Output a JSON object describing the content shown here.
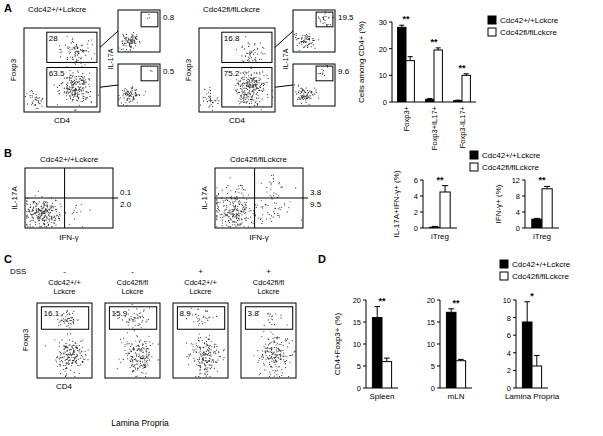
{
  "panel_labels": [
    "A",
    "B",
    "C",
    "D"
  ],
  "flow_a": [
    {
      "title": "Cdc42+/+Lckcre",
      "x_label": "CD4",
      "y_label": "Foxp3",
      "gates": [
        "28",
        "63.5"
      ],
      "sub_y_label": "IL-17A",
      "sub_gates": [
        "0.8",
        "0.5"
      ]
    },
    {
      "title": "Cdc42fl/flLckcre",
      "x_label": "CD4",
      "y_label": "Foxp3",
      "gates": [
        "16.8",
        "75.2"
      ],
      "sub_y_label": "IL-17A",
      "sub_gates": [
        "19.5",
        "9.6"
      ]
    }
  ],
  "flow_b": [
    {
      "title": "Cdc42+/+Lckcre",
      "x_label": "IFN-γ",
      "y_label": "IL-17A",
      "gates": [
        "0.1",
        "2.0"
      ]
    },
    {
      "title": "Cdc42fl/flLckcre",
      "x_label": "IFN-γ",
      "y_label": "IL-17A",
      "gates": [
        "3.8",
        "9.5"
      ]
    }
  ],
  "flow_c": {
    "treatment_label": "DSS",
    "x_label": "CD4",
    "y_label": "Foxp3",
    "tissue": "Lamina Propria",
    "plots": [
      {
        "treatment": "-",
        "title": [
          "Cdc42+/+",
          "Lckcre"
        ],
        "gate": "16.1"
      },
      {
        "treatment": "-",
        "title": [
          "Cdc42fl/fl",
          "Lckcre"
        ],
        "gate": "15.9"
      },
      {
        "treatment": "+",
        "title": [
          "Cdc42+/+",
          "Lckcre"
        ],
        "gate": "8.9"
      },
      {
        "treatment": "+",
        "title": [
          "Cdc42fl/fl",
          "Lckcre"
        ],
        "gate": "3.8"
      }
    ]
  },
  "chart_data": [
    {
      "type": "bar",
      "y_label": "Cells among CD4+ (%)",
      "categories": [
        "Foxp3+",
        "Foxp3+IL17+",
        "Foxp3-IL17+"
      ],
      "series": [
        {
          "name": "Cdc42+/+Lckcre",
          "color": "#000000",
          "values": [
            28,
            1,
            0.5
          ],
          "errors": [
            0.8,
            0.3,
            0.2
          ]
        },
        {
          "name": "Cdc42fl/flLckcre",
          "color": "#ffffff",
          "values": [
            15.5,
            19.5,
            10
          ],
          "errors": [
            1.5,
            0.8,
            0.6
          ]
        }
      ],
      "annotations": [
        "**",
        "**",
        "**"
      ],
      "ylim": [
        0,
        30
      ],
      "yticks": [
        0,
        10,
        20,
        30
      ],
      "legend": "top-right"
    },
    {
      "type": "bar",
      "y_label": "IL-17A+IFN-γ+ (%)",
      "categories": [
        "iTreg"
      ],
      "series": [
        {
          "name": "Cdc42+/+Lckcre",
          "color": "#000000",
          "values": [
            0.1
          ],
          "errors": [
            0.1
          ]
        },
        {
          "name": "Cdc42fl/flLckcre",
          "color": "#ffffff",
          "values": [
            4.5
          ],
          "errors": [
            0.8
          ]
        }
      ],
      "annotations": [
        "**"
      ],
      "ylim": [
        0,
        6
      ],
      "yticks": [
        0,
        2,
        4,
        6
      ]
    },
    {
      "type": "bar",
      "y_label": "IFN-γ+ (%)",
      "categories": [
        "iTreg"
      ],
      "series": [
        {
          "name": "Cdc42+/+Lckcre",
          "color": "#000000",
          "values": [
            2.2
          ],
          "errors": [
            0.2
          ]
        },
        {
          "name": "Cdc42fl/flLckcre",
          "color": "#ffffff",
          "values": [
            9.8
          ],
          "errors": [
            0.6
          ]
        }
      ],
      "annotations": [
        "**"
      ],
      "ylim": [
        0,
        12
      ],
      "yticks": [
        0,
        4,
        8,
        12
      ],
      "legend": "top-right"
    },
    {
      "type": "bar",
      "y_label": "CD4+Foxp3+ (%)",
      "categories": [
        "Spleen"
      ],
      "series": [
        {
          "name": "Cdc42+/+Lckcre",
          "color": "#000000",
          "values": [
            16
          ],
          "errors": [
            2.5
          ]
        },
        {
          "name": "Cdc42fl/flLckcre",
          "color": "#ffffff",
          "values": [
            6
          ],
          "errors": [
            0.8
          ]
        }
      ],
      "annotations": [
        "**"
      ],
      "ylim": [
        0,
        20
      ],
      "yticks": [
        0,
        5,
        10,
        15,
        20
      ]
    },
    {
      "type": "bar",
      "categories": [
        "mLN"
      ],
      "series": [
        {
          "name": "Cdc42+/+Lckcre",
          "color": "#000000",
          "values": [
            17.2
          ],
          "errors": [
            0.8
          ]
        },
        {
          "name": "Cdc42fl/flLckcre",
          "color": "#ffffff",
          "values": [
            6.2
          ],
          "errors": [
            0.3
          ]
        }
      ],
      "annotations": [
        "**"
      ],
      "ylim": [
        0,
        20
      ],
      "yticks": [
        0,
        5,
        10,
        15,
        20
      ]
    },
    {
      "type": "bar",
      "categories": [
        "Lamina Propria"
      ],
      "series": [
        {
          "name": "Cdc42+/+Lckcre",
          "color": "#000000",
          "values": [
            7.5
          ],
          "errors": [
            2.3
          ]
        },
        {
          "name": "Cdc42fl/flLckcre",
          "color": "#ffffff",
          "values": [
            2.5
          ],
          "errors": [
            1.2
          ]
        }
      ],
      "annotations": [
        "*"
      ],
      "ylim": [
        0,
        10
      ],
      "yticks": [
        0,
        2,
        4,
        6,
        8,
        10
      ],
      "legend": "top-right"
    }
  ]
}
